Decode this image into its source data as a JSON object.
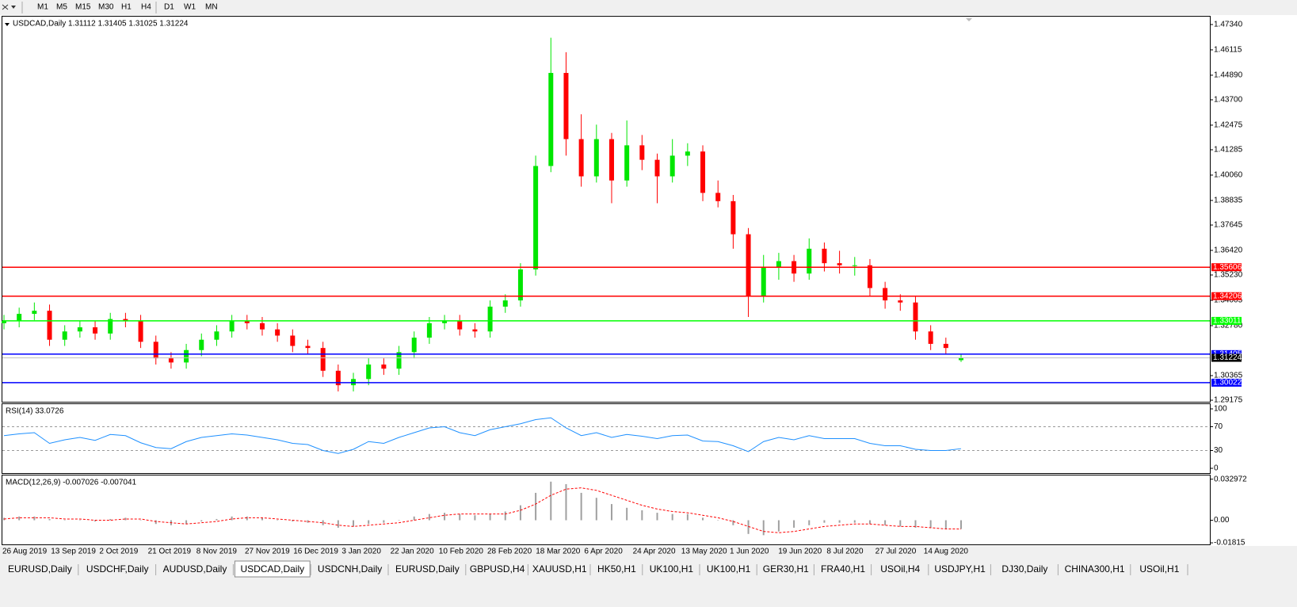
{
  "toolbar": {
    "timeframes": [
      "M1",
      "M5",
      "M15",
      "M30",
      "H1",
      "H4",
      "D1",
      "W1",
      "MN"
    ]
  },
  "chart_data": [
    {
      "type": "candlestick",
      "title": "USDCAD,Daily  1.31112 1.31405 1.31025 1.31224",
      "up_color": "#00e600",
      "down_color": "#ff0000",
      "open": [
        1.329,
        1.33,
        1.3335,
        1.335,
        1.321,
        1.325,
        1.327,
        1.324,
        1.331,
        1.33,
        1.32,
        1.312,
        1.31,
        1.316,
        1.321,
        1.325,
        1.33,
        1.329,
        1.326,
        1.323,
        1.318,
        1.317,
        1.306,
        1.299,
        1.302,
        1.309,
        1.307,
        1.315,
        1.322,
        1.329,
        1.33,
        1.326,
        1.325,
        1.337,
        1.34,
        1.355,
        1.405,
        1.45,
        1.418,
        1.4,
        1.418,
        1.398,
        1.415,
        1.408,
        1.4,
        1.41,
        1.412,
        1.392,
        1.388,
        1.372,
        1.342,
        1.356,
        1.359,
        1.353,
        1.365,
        1.358,
        1.357,
        1.357,
        1.346,
        1.34,
        1.339,
        1.325,
        1.319,
        1.31112
      ],
      "high": [
        1.333,
        1.3365,
        1.339,
        1.338,
        1.328,
        1.33,
        1.33,
        1.334,
        1.334,
        1.333,
        1.323,
        1.315,
        1.319,
        1.324,
        1.328,
        1.333,
        1.333,
        1.332,
        1.329,
        1.326,
        1.321,
        1.32,
        1.309,
        1.305,
        1.312,
        1.312,
        1.318,
        1.325,
        1.332,
        1.333,
        1.333,
        1.329,
        1.34,
        1.343,
        1.358,
        1.41,
        1.467,
        1.46,
        1.43,
        1.425,
        1.421,
        1.427,
        1.42,
        1.411,
        1.418,
        1.416,
        1.415,
        1.398,
        1.391,
        1.375,
        1.362,
        1.363,
        1.362,
        1.37,
        1.368,
        1.364,
        1.361,
        1.36,
        1.349,
        1.343,
        1.342,
        1.328,
        1.322,
        1.31405
      ],
      "low": [
        1.326,
        1.327,
        1.3305,
        1.318,
        1.318,
        1.322,
        1.321,
        1.321,
        1.327,
        1.317,
        1.309,
        1.307,
        1.307,
        1.313,
        1.318,
        1.322,
        1.326,
        1.323,
        1.32,
        1.315,
        1.314,
        1.303,
        1.296,
        1.296,
        1.299,
        1.304,
        1.304,
        1.312,
        1.319,
        1.326,
        1.323,
        1.322,
        1.322,
        1.334,
        1.337,
        1.352,
        1.402,
        1.41,
        1.395,
        1.397,
        1.387,
        1.395,
        1.403,
        1.387,
        1.397,
        1.405,
        1.388,
        1.385,
        1.365,
        1.332,
        1.339,
        1.35,
        1.349,
        1.35,
        1.354,
        1.353,
        1.352,
        1.342,
        1.336,
        1.335,
        1.321,
        1.316,
        1.314,
        1.31025
      ],
      "close": [
        1.33,
        1.3335,
        1.335,
        1.321,
        1.325,
        1.327,
        1.324,
        1.331,
        1.33,
        1.32,
        1.312,
        1.31,
        1.316,
        1.321,
        1.325,
        1.33,
        1.329,
        1.326,
        1.323,
        1.318,
        1.317,
        1.306,
        1.299,
        1.302,
        1.309,
        1.307,
        1.315,
        1.322,
        1.329,
        1.33,
        1.326,
        1.325,
        1.337,
        1.34,
        1.355,
        1.405,
        1.45,
        1.418,
        1.4,
        1.418,
        1.398,
        1.415,
        1.408,
        1.4,
        1.41,
        1.412,
        1.392,
        1.388,
        1.372,
        1.342,
        1.356,
        1.359,
        1.353,
        1.365,
        1.358,
        1.357,
        1.357,
        1.346,
        1.34,
        1.339,
        1.325,
        1.319,
        1.317,
        1.31224
      ],
      "ylim": [
        1.291,
        1.4776
      ],
      "yticks": [
        {
          "value": 1.4734,
          "label": "1.47340"
        },
        {
          "value": 1.46115,
          "label": "1.46115"
        },
        {
          "value": 1.4489,
          "label": "1.44890"
        },
        {
          "value": 1.437,
          "label": "1.43700"
        },
        {
          "value": 1.42475,
          "label": "1.42475"
        },
        {
          "value": 1.41285,
          "label": "1.41285"
        },
        {
          "value": 1.4006,
          "label": "1.40060"
        },
        {
          "value": 1.38835,
          "label": "1.38835"
        },
        {
          "value": 1.37645,
          "label": "1.37645"
        },
        {
          "value": 1.3642,
          "label": "1.36420"
        },
        {
          "value": 1.3523,
          "label": "1.35230"
        },
        {
          "value": 1.34005,
          "label": "1.34005"
        },
        {
          "value": 1.3278,
          "label": "1.32780"
        },
        {
          "value": 1.30365,
          "label": "1.30365"
        },
        {
          "value": 1.29175,
          "label": "1.29175"
        }
      ],
      "levels": [
        {
          "value": 1.35606,
          "label": "1.35606",
          "color": "#ff0000"
        },
        {
          "value": 1.34206,
          "label": "1.34206",
          "color": "#ff0000"
        },
        {
          "value": 1.33011,
          "label": "1.33011",
          "color": "#00ff00"
        },
        {
          "value": 1.31405,
          "label": "1.31405",
          "color": "#0000ff"
        },
        {
          "value": 1.30022,
          "label": "1.30022",
          "color": "#0000ff"
        },
        {
          "value": 1.31224,
          "label": "1.31224",
          "color": "#c0c0c0"
        }
      ],
      "x_axis_labels": [
        "26 Aug 2019",
        "13 Sep 2019",
        "2 Oct 2019",
        "21 Oct 2019",
        "8 Nov 2019",
        "27 Nov 2019",
        "16 Dec 2019",
        "3 Jan 2020",
        "22 Jan 2020",
        "10 Feb 2020",
        "28 Feb 2020",
        "18 Mar 2020",
        "6 Apr 2020",
        "24 Apr 2020",
        "13 May 2020",
        "1 Jun 2020",
        "19 Jun 2020",
        "8 Jul 2020",
        "27 Jul 2020",
        "14 Aug 2020"
      ]
    },
    {
      "type": "line",
      "title": "RSI(14) 33.0726",
      "color": "#1e90ff",
      "values": [
        55,
        58,
        60,
        42,
        48,
        52,
        47,
        57,
        55,
        43,
        35,
        33,
        45,
        52,
        55,
        58,
        56,
        52,
        48,
        42,
        40,
        30,
        25,
        32,
        45,
        42,
        52,
        60,
        68,
        70,
        60,
        55,
        65,
        70,
        75,
        82,
        85,
        68,
        55,
        60,
        52,
        57,
        54,
        50,
        55,
        56,
        46,
        45,
        38,
        28,
        45,
        52,
        48,
        55,
        50,
        50,
        50,
        42,
        38,
        38,
        32,
        30,
        30,
        33.0726
      ],
      "ylim": [
        -8,
        109.3
      ],
      "yticks": [
        0,
        30,
        70,
        100
      ],
      "levels": [
        30,
        70
      ]
    },
    {
      "type": "macd",
      "title": "MACD(12,26,9) -0.007026 -0.007041",
      "color": "#a0a0a0",
      "signal_color": "#ff0000",
      "values": [
        0.002,
        0.003,
        0.003,
        0.001,
        0.0,
        0.0,
        -0.001,
        0.001,
        0.002,
        0.0,
        -0.003,
        -0.004,
        -0.003,
        -0.001,
        0.001,
        0.003,
        0.003,
        0.002,
        0.0,
        -0.001,
        -0.002,
        -0.004,
        -0.006,
        -0.005,
        -0.003,
        -0.002,
        0.0,
        0.003,
        0.005,
        0.006,
        0.005,
        0.004,
        0.005,
        0.007,
        0.012,
        0.022,
        0.031,
        0.029,
        0.022,
        0.018,
        0.013,
        0.01,
        0.008,
        0.006,
        0.005,
        0.005,
        0.002,
        0.0,
        -0.004,
        -0.011,
        -0.012,
        -0.009,
        -0.006,
        -0.004,
        -0.002,
        -0.002,
        -0.002,
        -0.003,
        -0.004,
        -0.005,
        -0.006,
        -0.006,
        -0.007,
        -0.007026
      ],
      "signal": [
        0.001,
        0.002,
        0.002,
        0.002,
        0.001,
        0.001,
        0.0,
        0.0,
        0.001,
        0.001,
        -0.001,
        -0.002,
        -0.003,
        -0.002,
        -0.001,
        0.001,
        0.002,
        0.002,
        0.001,
        0.0,
        -0.001,
        -0.002,
        -0.004,
        -0.005,
        -0.004,
        -0.003,
        -0.002,
        0.0,
        0.002,
        0.004,
        0.005,
        0.005,
        0.005,
        0.005,
        0.008,
        0.013,
        0.02,
        0.025,
        0.026,
        0.024,
        0.02,
        0.016,
        0.012,
        0.009,
        0.007,
        0.006,
        0.004,
        0.002,
        -0.001,
        -0.005,
        -0.009,
        -0.01,
        -0.009,
        -0.007,
        -0.005,
        -0.004,
        -0.003,
        -0.003,
        -0.004,
        -0.005,
        -0.005,
        -0.006,
        -0.007,
        -0.007041
      ],
      "ylim": [
        -0.0194,
        0.0366
      ],
      "yticks": [
        0.032972,
        {
          "value": 0,
          "label": "0.00"
        },
        -0.01815
      ]
    }
  ],
  "tabs": {
    "items": [
      "EURUSD,Daily",
      "USDCHF,Daily",
      "AUDUSD,Daily",
      "USDCAD,Daily",
      "USDCNH,Daily",
      "EURUSD,Daily",
      "GBPUSD,H4",
      "XAUUSD,H1",
      "HK50,H1",
      "UK100,H1",
      "UK100,H1",
      "GER30,H1",
      "FRA40,H1",
      "USOil,H4",
      "USDJPY,H1",
      "DJ30,Daily",
      "CHINA300,H1",
      "USOil,H1"
    ],
    "active": 3
  }
}
